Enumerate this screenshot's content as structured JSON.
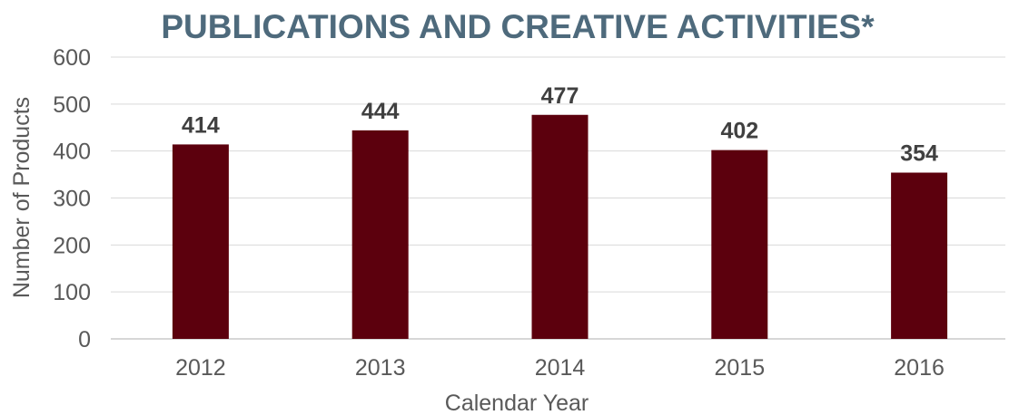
{
  "chart_data": {
    "type": "bar",
    "title": "PUBLICATIONS AND CREATIVE ACTIVITIES*",
    "xlabel": "Calendar Year",
    "ylabel": "Number of Products",
    "categories": [
      "2012",
      "2013",
      "2014",
      "2015",
      "2016"
    ],
    "values": [
      414,
      444,
      477,
      402,
      354
    ],
    "data_labels": [
      "414",
      "444",
      "477",
      "402",
      "354"
    ],
    "ylim": [
      0,
      600
    ],
    "y_ticks": [
      "0",
      "100",
      "200",
      "300",
      "400",
      "500",
      "600"
    ],
    "grid": true,
    "legend": "none",
    "colors": {
      "bar": "#5c000d",
      "title": "#4e6a7c"
    }
  }
}
